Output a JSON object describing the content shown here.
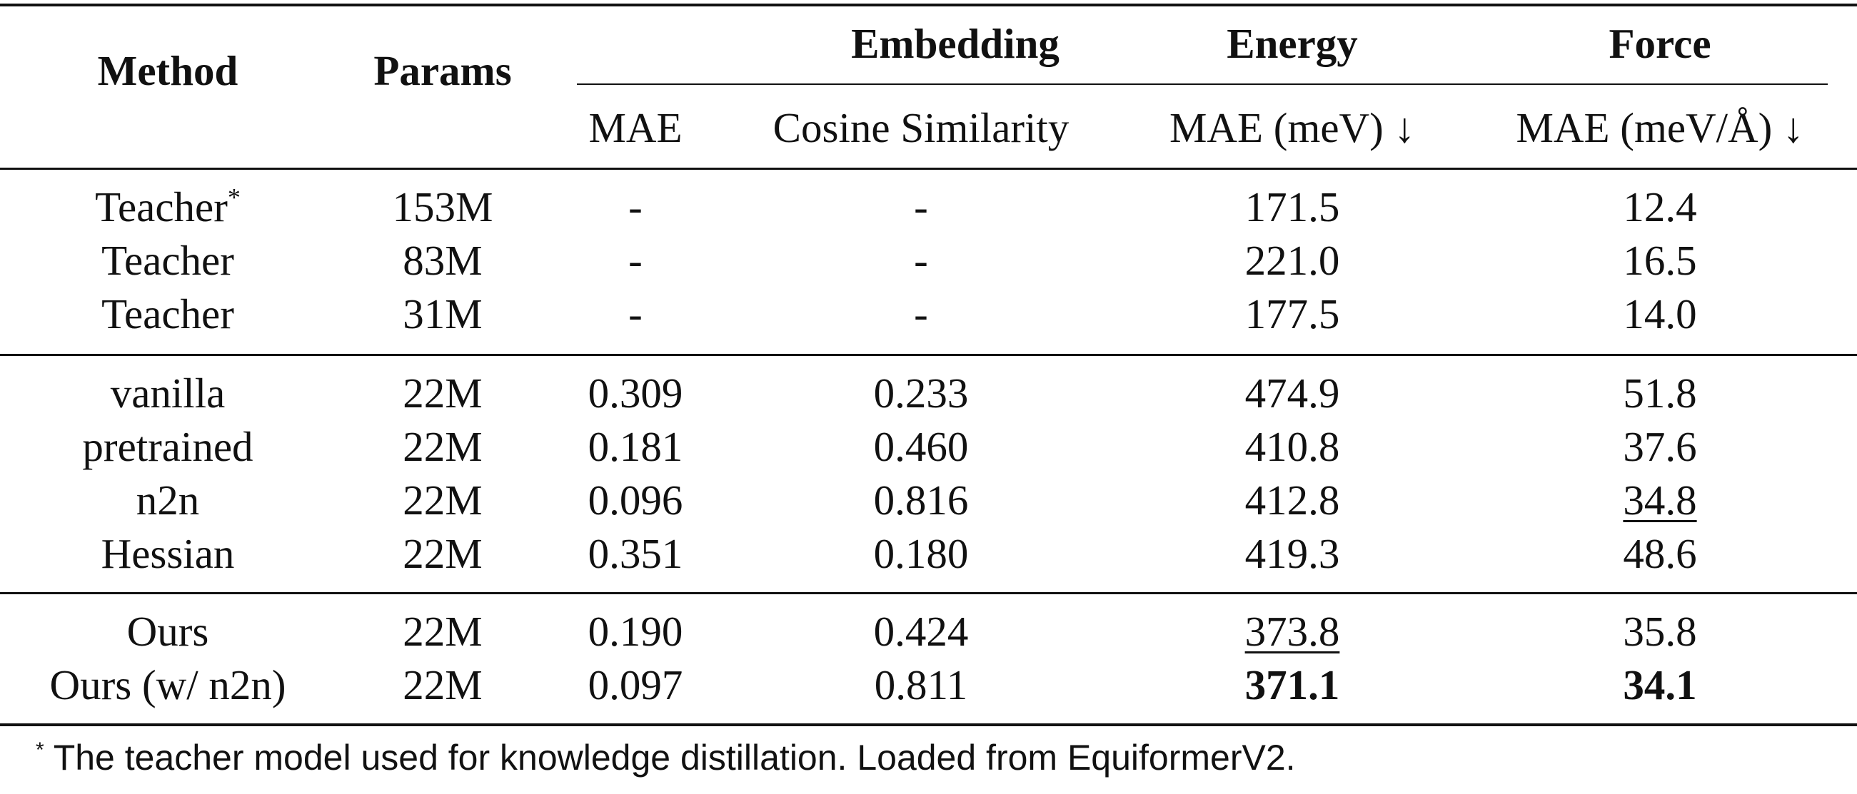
{
  "table": {
    "headers": {
      "method": "Method",
      "params": "Params",
      "embedding": "Embedding",
      "energy": "Energy",
      "force": "Force",
      "emb_mae": "MAE",
      "emb_cos": "Cosine Similarity",
      "energy_mae": "MAE (meV) ↓",
      "force_mae": "MAE (meV/Å) ↓"
    },
    "rows": [
      {
        "method": "Teacher",
        "sup": "*",
        "params": "153M",
        "emb_mae": "-",
        "emb_cos": "-",
        "energy": "171.5",
        "force": "12.4"
      },
      {
        "method": "Teacher",
        "sup": "",
        "params": "83M",
        "emb_mae": "-",
        "emb_cos": "-",
        "energy": "221.0",
        "force": "16.5"
      },
      {
        "method": "Teacher",
        "sup": "",
        "params": "31M",
        "emb_mae": "-",
        "emb_cos": "-",
        "energy": "177.5",
        "force": "14.0"
      },
      {
        "method": "vanilla",
        "sup": "",
        "params": "22M",
        "emb_mae": "0.309",
        "emb_cos": "0.233",
        "energy": "474.9",
        "force": "51.8"
      },
      {
        "method": "pretrained",
        "sup": "",
        "params": "22M",
        "emb_mae": "0.181",
        "emb_cos": "0.460",
        "energy": "410.8",
        "force": "37.6"
      },
      {
        "method": "n2n",
        "sup": "",
        "params": "22M",
        "emb_mae": "0.096",
        "emb_cos": "0.816",
        "energy": "412.8",
        "force": "34.8"
      },
      {
        "method": "Hessian",
        "sup": "",
        "params": "22M",
        "emb_mae": "0.351",
        "emb_cos": "0.180",
        "energy": "419.3",
        "force": "48.6"
      },
      {
        "method": "Ours",
        "sup": "",
        "params": "22M",
        "emb_mae": "0.190",
        "emb_cos": "0.424",
        "energy": "373.8",
        "force": "35.8"
      },
      {
        "method": "Ours (w/ n2n)",
        "sup": "",
        "params": "22M",
        "emb_mae": "0.097",
        "emb_cos": "0.811",
        "energy": "371.1",
        "force": "34.1"
      }
    ]
  },
  "footnote": {
    "mark": "*",
    "text": "The teacher model used for knowledge distillation. Loaded from EquiformerV2."
  }
}
